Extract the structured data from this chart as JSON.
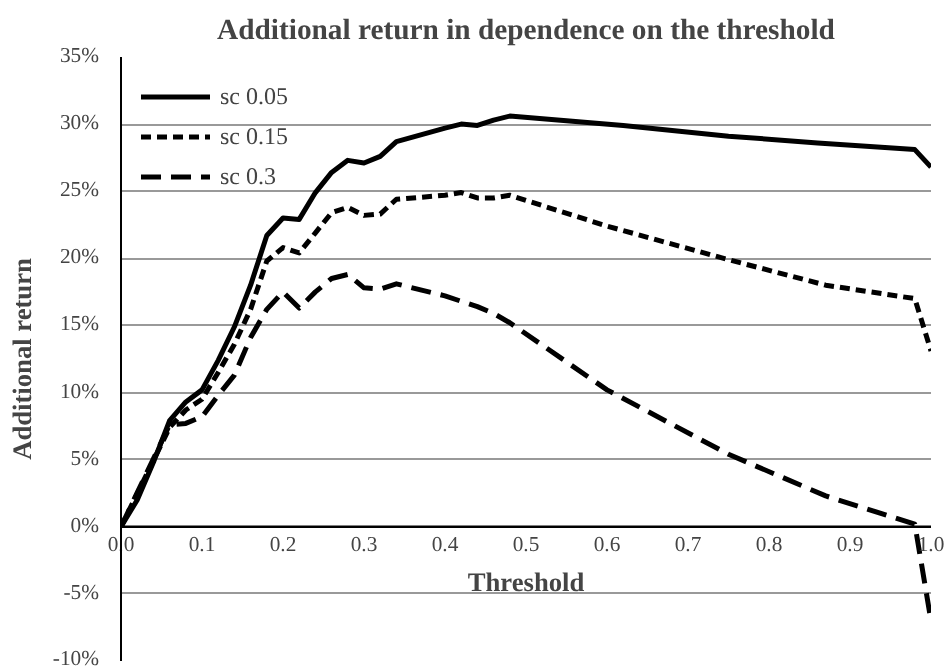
{
  "chart_data": {
    "type": "line",
    "title": "Additional return in dependence on the threshold",
    "xlabel": "Threshold",
    "ylabel": "Additional return",
    "xlim": [
      0,
      1
    ],
    "xticks": [
      {
        "value": 0,
        "label": "0.0"
      },
      {
        "value": 0.1,
        "label": "0.1"
      },
      {
        "value": 0.2,
        "label": "0.2"
      },
      {
        "value": 0.3,
        "label": "0.3"
      },
      {
        "value": 0.4,
        "label": "0.4"
      },
      {
        "value": 0.5,
        "label": "0.5"
      },
      {
        "value": 0.6,
        "label": "0.6"
      },
      {
        "value": 0.7,
        "label": "0.7"
      },
      {
        "value": 0.8,
        "label": "0.8"
      },
      {
        "value": 0.9,
        "label": "0.9"
      },
      {
        "value": 1,
        "label": "1.0"
      }
    ],
    "ylim": [
      -10,
      35
    ],
    "yticks": [
      {
        "value": -10,
        "label": "-10%"
      },
      {
        "value": -5,
        "label": "-5%"
      },
      {
        "value": 0,
        "label": "0%"
      },
      {
        "value": 5,
        "label": "5%"
      },
      {
        "value": 10,
        "label": "10%"
      },
      {
        "value": 15,
        "label": "15%"
      },
      {
        "value": 20,
        "label": "20%"
      },
      {
        "value": 25,
        "label": "25%"
      },
      {
        "value": 30,
        "label": "30%"
      },
      {
        "value": 35,
        "label": "35%"
      }
    ],
    "grid": "y",
    "legend": "top left",
    "marker": "none",
    "series": [
      {
        "name": "sc 0.05",
        "color": "#000000",
        "line_style": "solid",
        "x": [
          0,
          0.02,
          0.04,
          0.06,
          0.08,
          0.1,
          0.12,
          0.14,
          0.16,
          0.18,
          0.2,
          0.22,
          0.24,
          0.26,
          0.28,
          0.3,
          0.32,
          0.34,
          0.4,
          0.42,
          0.44,
          0.46,
          0.48,
          0.62,
          0.75,
          0.86,
          0.98,
          1.0
        ],
        "values": [
          0,
          2.0,
          4.8,
          7.9,
          9.3,
          10.2,
          12.4,
          14.9,
          18.0,
          21.7,
          23.0,
          22.9,
          24.9,
          26.4,
          27.3,
          27.1,
          27.6,
          28.7,
          29.7,
          30.0,
          29.9,
          30.3,
          30.6,
          29.9,
          29.1,
          28.6,
          28.1,
          26.8
        ]
      },
      {
        "name": "sc 0.15",
        "color": "#000000",
        "line_style": "dotted",
        "x": [
          0,
          0.06,
          0.08,
          0.1,
          0.12,
          0.14,
          0.16,
          0.18,
          0.2,
          0.22,
          0.24,
          0.26,
          0.28,
          0.3,
          0.32,
          0.34,
          0.4,
          0.42,
          0.44,
          0.46,
          0.48,
          0.6,
          0.75,
          0.87,
          0.98,
          1.0
        ],
        "values": [
          0,
          7.4,
          8.7,
          9.5,
          11.5,
          13.6,
          16.2,
          19.8,
          20.8,
          20.4,
          21.9,
          23.4,
          23.8,
          23.2,
          23.3,
          24.4,
          24.7,
          24.9,
          24.5,
          24.5,
          24.7,
          22.4,
          19.9,
          18.0,
          17.0,
          13.1
        ]
      },
      {
        "name": "sc 0.3",
        "color": "#000000",
        "line_style": "dashed",
        "x": [
          0,
          0.06,
          0.08,
          0.1,
          0.12,
          0.14,
          0.16,
          0.18,
          0.2,
          0.22,
          0.24,
          0.26,
          0.28,
          0.3,
          0.32,
          0.34,
          0.4,
          0.44,
          0.46,
          0.48,
          0.6,
          0.75,
          0.87,
          0.98,
          1.0
        ],
        "values": [
          0,
          7.6,
          7.7,
          8.2,
          9.8,
          11.3,
          14.1,
          16.2,
          17.5,
          16.3,
          17.5,
          18.5,
          18.8,
          17.8,
          17.7,
          18.1,
          17.2,
          16.4,
          15.9,
          15.2,
          10.2,
          5.4,
          2.3,
          0.2,
          -7.0
        ]
      }
    ]
  }
}
